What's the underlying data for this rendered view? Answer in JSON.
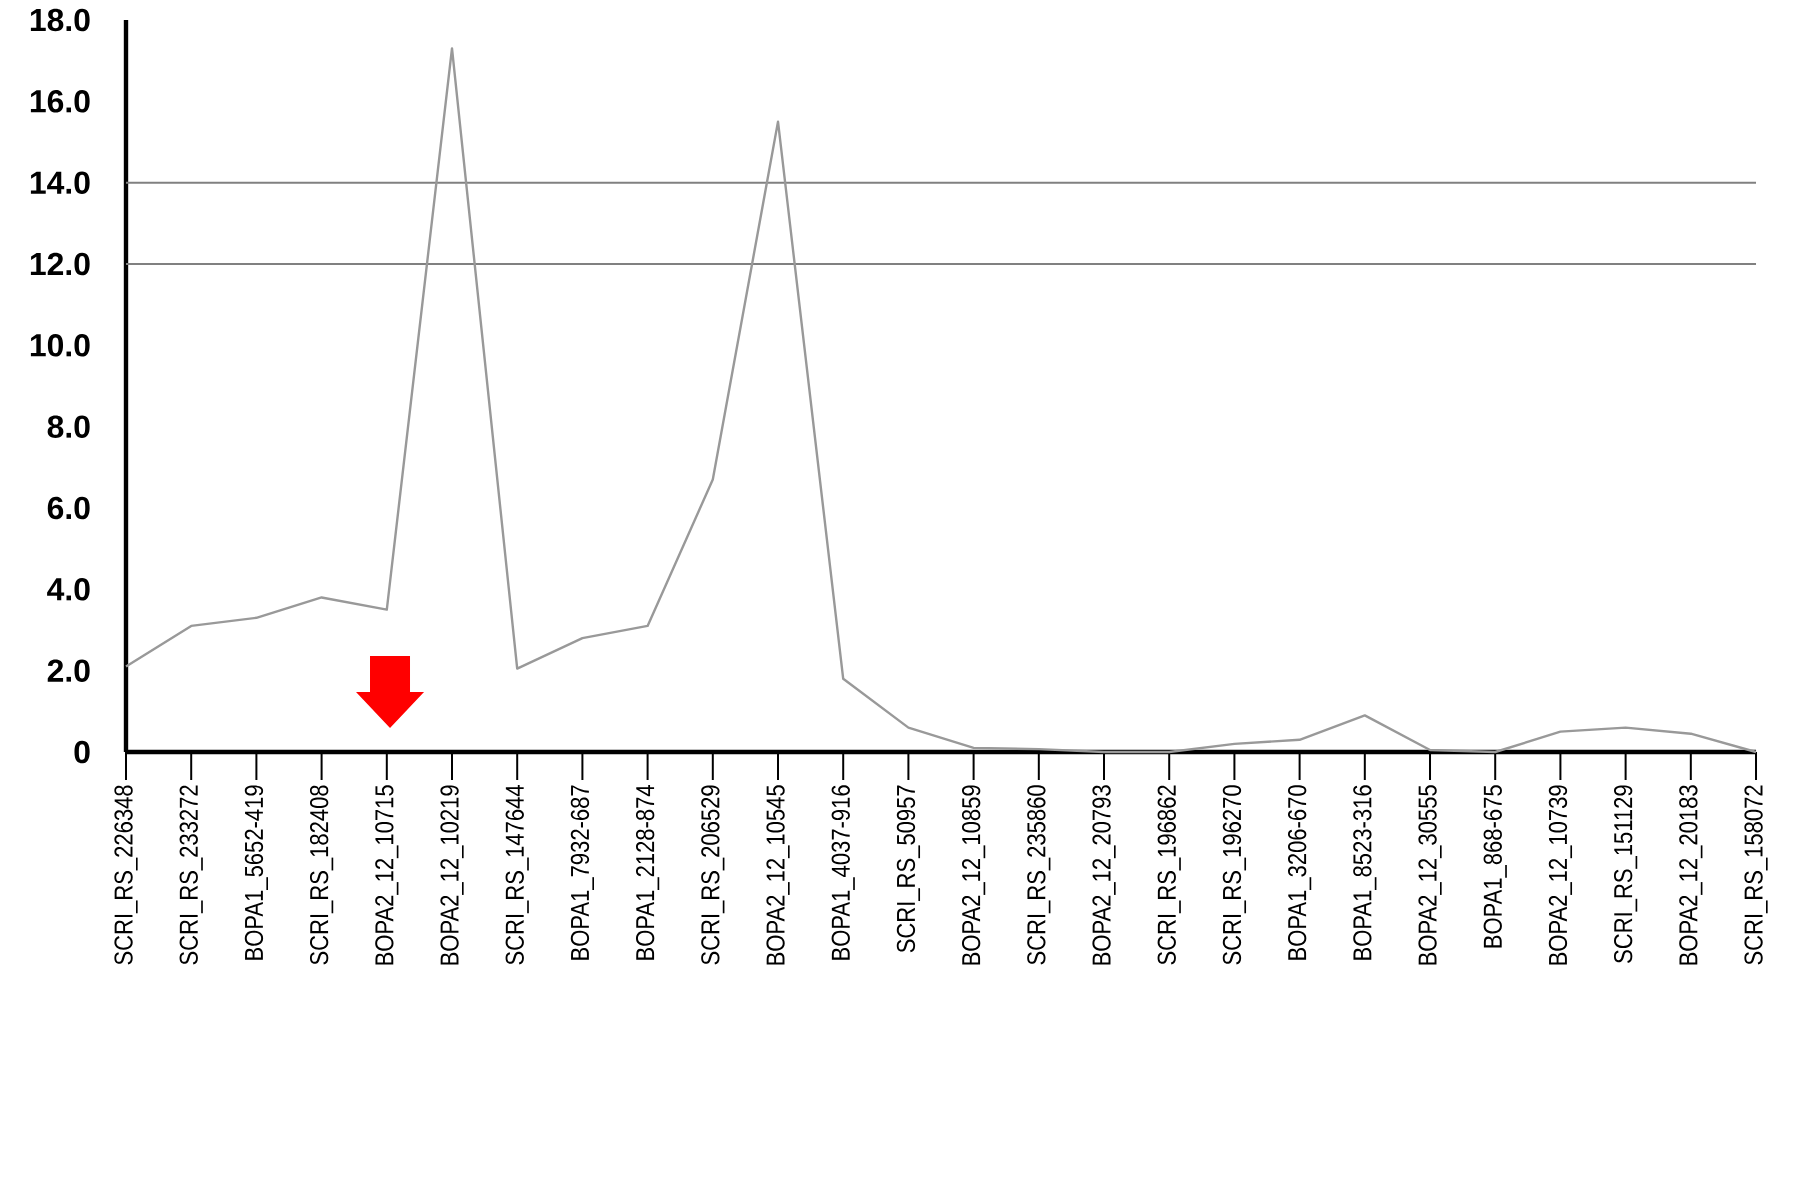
{
  "chart_data": {
    "type": "line",
    "categories": [
      "SCRI_RS_226348",
      "SCRI_RS_233272",
      "BOPA1_5652-419",
      "SCRI_RS_182408",
      "BOPA2_12_10715",
      "BOPA2_12_10219",
      "SCRI_RS_147644",
      "BOPA1_7932-687",
      "BOPA1_2128-874",
      "SCRI_RS_206529",
      "BOPA2_12_10545",
      "BOPA1_4037-916",
      "SCRI_RS_50957",
      "BOPA2_12_10859",
      "SCRI_RS_235860",
      "BOPA2_12_20793",
      "SCRI_RS_196862",
      "SCRI_RS_196270",
      "BOPA1_3206-670",
      "BOPA1_8523-316",
      "BOPA2_12_30555",
      "BOPA1_868-675",
      "BOPA2_12_10739",
      "SCRI_RS_151129",
      "BOPA2_12_20183",
      "SCRI_RS_158072"
    ],
    "series": [
      {
        "color": "#999999",
        "values": [
          2.1,
          3.1,
          3.3,
          3.8,
          3.5,
          17.3,
          2.05,
          2.8,
          3.1,
          6.7,
          15.5,
          1.8,
          0.6,
          0.1,
          0.07,
          0.0,
          0.0,
          0.2,
          0.3,
          0.9,
          0.05,
          0.0,
          0.5,
          0.6,
          0.45,
          0.0
        ]
      }
    ],
    "ylim": [
      0,
      18
    ],
    "yticks": [
      0,
      {
        "value": 2,
        "label": "2.0"
      },
      {
        "value": 4,
        "label": "4.0"
      },
      {
        "value": 6,
        "label": "6.0"
      },
      {
        "value": 8,
        "label": "8.0"
      },
      {
        "value": 10,
        "label": "10.0"
      },
      {
        "value": 12,
        "label": "12.0"
      },
      {
        "value": 14,
        "label": "14.0"
      },
      {
        "value": 16,
        "label": "16.0"
      },
      {
        "value": 18,
        "label": "18.0"
      }
    ],
    "ref_lines": [
      {
        "axis": "y",
        "value": 14,
        "color": "#808080"
      },
      {
        "axis": "y",
        "value": 12,
        "color": "#808080"
      }
    ]
  }
}
